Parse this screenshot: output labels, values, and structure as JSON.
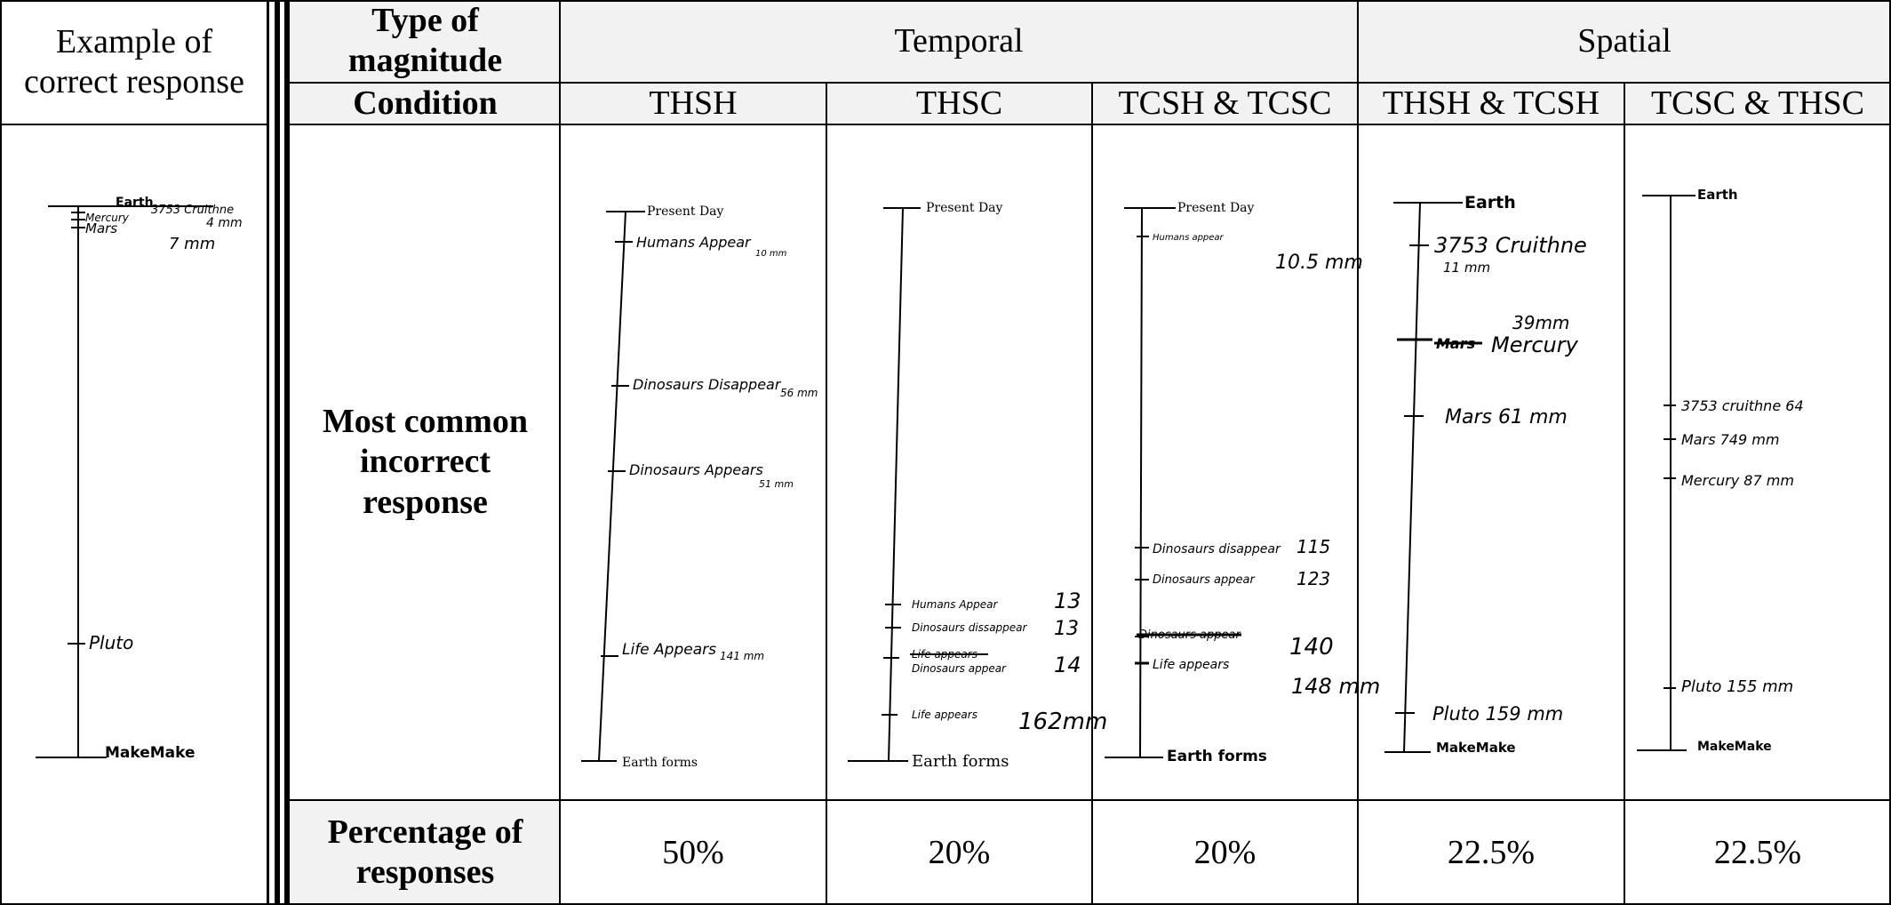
{
  "left": {
    "header": "Example of correct response"
  },
  "header": {
    "type_label": "Type of magnitude",
    "condition_label": "Condition",
    "temporal": "Temporal",
    "spatial": "Spatial",
    "conditions": [
      "THSH",
      "THSC",
      "TCSH & TCSC",
      "THSH & TCSH",
      "TCSC & THSC"
    ]
  },
  "rows": {
    "incorrect_label": "Most common incorrect response",
    "percent_label": "Percentage of responses",
    "percentages": [
      "50%",
      "20%",
      "20%",
      "22.5%",
      "22.5%"
    ]
  },
  "sketches": {
    "correct": {
      "top": "Earth",
      "a": "3753 Cruithne",
      "b": "Mercury",
      "c": "Mars",
      "ann1": "4 mm",
      "ann2": "7 mm",
      "pluto": "Pluto",
      "bottom": "MakeMake"
    },
    "thsh": {
      "top": "Present Day",
      "m1": "Humans Appear",
      "m1v": "10 mm",
      "m2": "Dinosaurs Disappear",
      "m2v": "56 mm",
      "m3": "Dinosaurs Appears",
      "m3v": "51 mm",
      "m4": "Life Appears",
      "m4v": "141 mm",
      "bottom": "Earth forms"
    },
    "thsc": {
      "top": "Present Day",
      "m1": "Humans Appear",
      "m1v": "13",
      "m2": "Dinosaurs dissappear",
      "m2v": "13",
      "m3": "Life appears",
      "m4": "Dinosaurs appear",
      "m4v": "14",
      "m5": "Life appears",
      "m5v": "162mm",
      "bottom": "Earth forms"
    },
    "tcsh": {
      "top": "Present Day",
      "m1": "Humans appear",
      "m1v": "10.5 mm",
      "m2": "Dinosaurs disappear",
      "m2v": "115",
      "m3": "Dinosaurs appear",
      "m3v": "123",
      "m4": "Dinosaurs appear",
      "m4v": "140",
      "m5": "Life appears",
      "m5v": "148 mm",
      "bottom": "Earth forms"
    },
    "sp1": {
      "top": "Earth",
      "m1": "3753 Cruithne",
      "m1v": "11 mm",
      "m2": "Mars",
      "m2b": "Mercury",
      "m2v": "39mm",
      "m3": "Mars 61 mm",
      "m4": "Pluto 159 mm",
      "bottom": "MakeMake"
    },
    "sp2": {
      "top": "Earth",
      "m1": "3753 cruithne 64",
      "m2": "Mars 749 mm",
      "m3": "Mercury 87 mm",
      "m4": "Pluto 155 mm",
      "bottom": "MakeMake"
    }
  }
}
